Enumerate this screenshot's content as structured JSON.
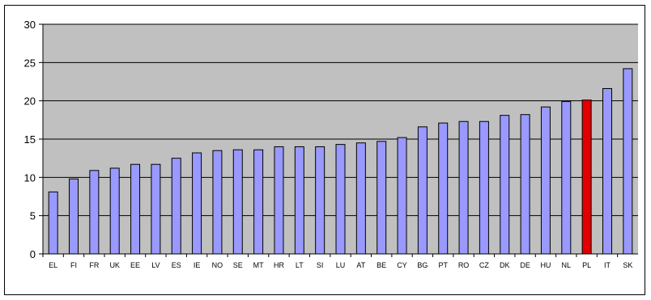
{
  "chart_data": {
    "type": "bar",
    "title": "",
    "xlabel": "",
    "ylabel": "",
    "ylim": [
      0,
      30
    ],
    "yticks": [
      0,
      5,
      10,
      15,
      20,
      25,
      30
    ],
    "grid": true,
    "categories": [
      "EL",
      "FI",
      "FR",
      "UK",
      "EE",
      "LV",
      "ES",
      "IE",
      "NO",
      "SE",
      "MT",
      "HR",
      "LT",
      "SI",
      "LU",
      "AT",
      "BE",
      "CY",
      "BG",
      "PT",
      "RO",
      "CZ",
      "DK",
      "DE",
      "HU",
      "NL",
      "PL",
      "IT",
      "SK"
    ],
    "values": [
      8.1,
      9.8,
      10.9,
      11.2,
      11.7,
      11.7,
      12.5,
      13.2,
      13.5,
      13.6,
      13.6,
      14.0,
      14.0,
      14.0,
      14.3,
      14.5,
      14.7,
      15.2,
      16.6,
      17.1,
      17.3,
      17.3,
      18.1,
      18.2,
      19.2,
      19.9,
      20.1,
      21.6,
      24.2
    ],
    "highlight_category": "PL",
    "colors": {
      "plot_background": "#c0c0c0",
      "bar": "#9999ff",
      "bar_highlight": "#e00000",
      "bar_outline": "#000000",
      "gridline": "#000000"
    }
  }
}
